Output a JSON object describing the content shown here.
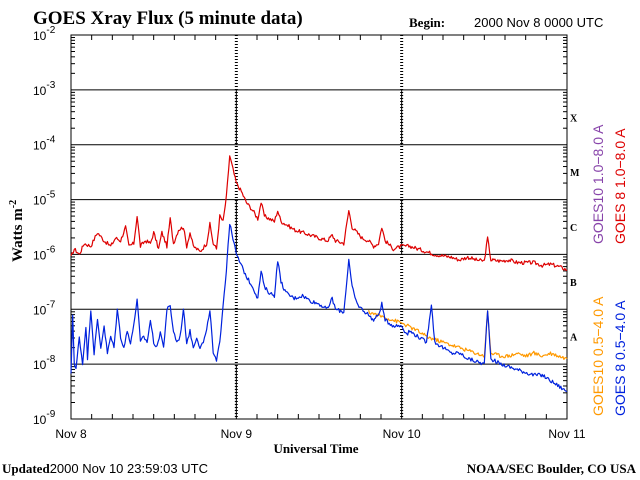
{
  "chart_data": {
    "type": "line",
    "title": "GOES Xray Flux (5 minute data)",
    "begin_label": "Begin:",
    "begin_value": "2000 Nov 8  0000 UTC",
    "ylabel": "Watts m",
    "ylabel_sup": "-2",
    "xlabel": "Universal Time",
    "yscale": "log",
    "ylim_exp": [
      -9,
      -2
    ],
    "y_ticks": [
      {
        "exp": -9,
        "base": "10",
        "sup": "-9"
      },
      {
        "exp": -8,
        "base": "10",
        "sup": "-8"
      },
      {
        "exp": -7,
        "base": "10",
        "sup": "-7"
      },
      {
        "exp": -6,
        "base": "10",
        "sup": "-6"
      },
      {
        "exp": -5,
        "base": "10",
        "sup": "-5"
      },
      {
        "exp": -4,
        "base": "10",
        "sup": "-4"
      },
      {
        "exp": -3,
        "base": "10",
        "sup": "-3"
      },
      {
        "exp": -2,
        "base": "10",
        "sup": "-2"
      }
    ],
    "xlim_days": [
      0,
      3
    ],
    "x_ticks": [
      {
        "day": 0,
        "label": "Nov 8"
      },
      {
        "day": 1,
        "label": "Nov 9"
      },
      {
        "day": 2,
        "label": "Nov 10"
      },
      {
        "day": 3,
        "label": "Nov 11"
      }
    ],
    "flare_classes": [
      {
        "label": "A",
        "exp": -8
      },
      {
        "label": "B",
        "exp": -7
      },
      {
        "label": "C",
        "exp": -6
      },
      {
        "label": "M",
        "exp": -5
      },
      {
        "label": "X",
        "exp": -4
      }
    ],
    "series": [
      {
        "name": "GOES 8 1.0-8.0 A",
        "legend": "GOES 8 1.0−8.0 A",
        "color": "#dd0000",
        "points": [
          [
            0,
            -6.05
          ],
          [
            0.02,
            -5.9
          ],
          [
            0.05,
            -6.0
          ],
          [
            0.08,
            -5.8
          ],
          [
            0.12,
            -5.85
          ],
          [
            0.16,
            -5.6
          ],
          [
            0.2,
            -5.75
          ],
          [
            0.24,
            -5.85
          ],
          [
            0.27,
            -5.7
          ],
          [
            0.3,
            -5.75
          ],
          [
            0.33,
            -5.5
          ],
          [
            0.35,
            -5.85
          ],
          [
            0.38,
            -5.8
          ],
          [
            0.4,
            -5.3
          ],
          [
            0.42,
            -5.85
          ],
          [
            0.45,
            -5.75
          ],
          [
            0.48,
            -5.8
          ],
          [
            0.5,
            -5.6
          ],
          [
            0.53,
            -5.9
          ],
          [
            0.55,
            -5.6
          ],
          [
            0.58,
            -5.85
          ],
          [
            0.6,
            -5.35
          ],
          [
            0.62,
            -5.8
          ],
          [
            0.65,
            -5.55
          ],
          [
            0.68,
            -5.5
          ],
          [
            0.7,
            -5.85
          ],
          [
            0.72,
            -5.6
          ],
          [
            0.74,
            -5.85
          ],
          [
            0.78,
            -5.95
          ],
          [
            0.82,
            -5.8
          ],
          [
            0.84,
            -5.45
          ],
          [
            0.86,
            -5.8
          ],
          [
            0.88,
            -5.9
          ],
          [
            0.9,
            -5.3
          ],
          [
            0.92,
            -5.4
          ],
          [
            0.94,
            -4.95
          ],
          [
            0.96,
            -4.2
          ],
          [
            0.98,
            -4.45
          ],
          [
            1.0,
            -4.7
          ],
          [
            1.03,
            -4.85
          ],
          [
            1.06,
            -5.05
          ],
          [
            1.1,
            -5.2
          ],
          [
            1.13,
            -5.35
          ],
          [
            1.15,
            -5.05
          ],
          [
            1.17,
            -5.3
          ],
          [
            1.2,
            -5.35
          ],
          [
            1.23,
            -5.4
          ],
          [
            1.25,
            -5.2
          ],
          [
            1.27,
            -5.4
          ],
          [
            1.3,
            -5.45
          ],
          [
            1.35,
            -5.55
          ],
          [
            1.4,
            -5.6
          ],
          [
            1.45,
            -5.65
          ],
          [
            1.5,
            -5.7
          ],
          [
            1.55,
            -5.75
          ],
          [
            1.58,
            -5.65
          ],
          [
            1.6,
            -5.75
          ],
          [
            1.65,
            -5.8
          ],
          [
            1.68,
            -5.2
          ],
          [
            1.7,
            -5.5
          ],
          [
            1.73,
            -5.6
          ],
          [
            1.76,
            -5.7
          ],
          [
            1.8,
            -5.75
          ],
          [
            1.83,
            -5.85
          ],
          [
            1.86,
            -5.8
          ],
          [
            1.88,
            -5.5
          ],
          [
            1.9,
            -5.75
          ],
          [
            1.95,
            -5.9
          ],
          [
            2.0,
            -5.85
          ],
          [
            2.05,
            -5.85
          ],
          [
            2.1,
            -5.9
          ],
          [
            2.15,
            -5.95
          ],
          [
            2.2,
            -6.0
          ],
          [
            2.3,
            -6.05
          ],
          [
            2.35,
            -6.1
          ],
          [
            2.4,
            -6.05
          ],
          [
            2.45,
            -6.1
          ],
          [
            2.5,
            -6.12
          ],
          [
            2.52,
            -5.7
          ],
          [
            2.54,
            -6.1
          ],
          [
            2.6,
            -6.12
          ],
          [
            2.65,
            -6.1
          ],
          [
            2.7,
            -6.15
          ],
          [
            2.75,
            -6.15
          ],
          [
            2.8,
            -6.15
          ],
          [
            2.85,
            -6.2
          ],
          [
            2.9,
            -6.18
          ],
          [
            2.95,
            -6.22
          ],
          [
            3.0,
            -6.28
          ]
        ]
      },
      {
        "name": "GOES 8 0.5-4.0 A",
        "legend": "GOES 8 0.5−4.0 A",
        "color": "#0022dd",
        "points": [
          [
            0,
            -8.2
          ],
          [
            0.01,
            -7.1
          ],
          [
            0.02,
            -8.0
          ],
          [
            0.03,
            -8.1
          ],
          [
            0.05,
            -7.5
          ],
          [
            0.07,
            -8.0
          ],
          [
            0.09,
            -7.3
          ],
          [
            0.1,
            -7.9
          ],
          [
            0.12,
            -7.0
          ],
          [
            0.14,
            -7.8
          ],
          [
            0.16,
            -7.2
          ],
          [
            0.18,
            -7.7
          ],
          [
            0.2,
            -7.3
          ],
          [
            0.22,
            -7.8
          ],
          [
            0.24,
            -7.5
          ],
          [
            0.26,
            -7.7
          ],
          [
            0.28,
            -7.0
          ],
          [
            0.3,
            -7.5
          ],
          [
            0.32,
            -7.7
          ],
          [
            0.34,
            -7.4
          ],
          [
            0.36,
            -7.6
          ],
          [
            0.38,
            -7.3
          ],
          [
            0.4,
            -6.8
          ],
          [
            0.42,
            -7.6
          ],
          [
            0.44,
            -7.5
          ],
          [
            0.46,
            -7.6
          ],
          [
            0.48,
            -7.2
          ],
          [
            0.5,
            -7.6
          ],
          [
            0.52,
            -7.7
          ],
          [
            0.54,
            -7.4
          ],
          [
            0.56,
            -7.7
          ],
          [
            0.58,
            -7.0
          ],
          [
            0.6,
            -6.95
          ],
          [
            0.62,
            -7.4
          ],
          [
            0.64,
            -7.6
          ],
          [
            0.66,
            -7.5
          ],
          [
            0.68,
            -7.0
          ],
          [
            0.7,
            -7.6
          ],
          [
            0.72,
            -7.4
          ],
          [
            0.74,
            -7.7
          ],
          [
            0.76,
            -7.5
          ],
          [
            0.78,
            -7.7
          ],
          [
            0.8,
            -7.6
          ],
          [
            0.82,
            -7.4
          ],
          [
            0.84,
            -7.0
          ],
          [
            0.86,
            -7.8
          ],
          [
            0.88,
            -7.95
          ],
          [
            0.9,
            -7.6
          ],
          [
            0.92,
            -6.9
          ],
          [
            0.94,
            -6.3
          ],
          [
            0.95,
            -5.8
          ],
          [
            0.96,
            -5.45
          ],
          [
            0.98,
            -5.7
          ],
          [
            1.0,
            -6.0
          ],
          [
            1.03,
            -6.2
          ],
          [
            1.06,
            -6.4
          ],
          [
            1.1,
            -6.6
          ],
          [
            1.13,
            -6.8
          ],
          [
            1.15,
            -6.3
          ],
          [
            1.17,
            -6.6
          ],
          [
            1.2,
            -6.7
          ],
          [
            1.23,
            -6.75
          ],
          [
            1.25,
            -6.1
          ],
          [
            1.27,
            -6.5
          ],
          [
            1.3,
            -6.7
          ],
          [
            1.35,
            -6.8
          ],
          [
            1.4,
            -6.75
          ],
          [
            1.45,
            -6.85
          ],
          [
            1.5,
            -6.9
          ],
          [
            1.55,
            -7.0
          ],
          [
            1.58,
            -6.8
          ],
          [
            1.6,
            -7.0
          ],
          [
            1.65,
            -7.05
          ],
          [
            1.68,
            -6.1
          ],
          [
            1.7,
            -6.6
          ],
          [
            1.73,
            -6.9
          ],
          [
            1.76,
            -7.0
          ],
          [
            1.8,
            -7.1
          ],
          [
            1.83,
            -7.2
          ],
          [
            1.86,
            -7.1
          ],
          [
            1.88,
            -6.9
          ],
          [
            1.9,
            -7.2
          ],
          [
            1.95,
            -7.3
          ],
          [
            2.0,
            -7.3
          ],
          [
            2.03,
            -7.45
          ],
          [
            2.05,
            -7.4
          ],
          [
            2.1,
            -7.5
          ],
          [
            2.15,
            -7.6
          ],
          [
            2.18,
            -6.9
          ],
          [
            2.2,
            -7.6
          ],
          [
            2.25,
            -7.7
          ],
          [
            2.3,
            -7.8
          ],
          [
            2.35,
            -7.8
          ],
          [
            2.4,
            -7.9
          ],
          [
            2.45,
            -7.95
          ],
          [
            2.5,
            -8.0
          ],
          [
            2.52,
            -7.0
          ],
          [
            2.54,
            -7.9
          ],
          [
            2.6,
            -8.0
          ],
          [
            2.65,
            -8.05
          ],
          [
            2.7,
            -8.1
          ],
          [
            2.75,
            -8.15
          ],
          [
            2.8,
            -8.2
          ],
          [
            2.85,
            -8.2
          ],
          [
            2.9,
            -8.3
          ],
          [
            2.95,
            -8.4
          ],
          [
            3.0,
            -8.5
          ]
        ]
      },
      {
        "name": "GOES10 1.0-8.0 A",
        "legend": "GOES10 1.0−8.0 A",
        "color": "#8844aa",
        "points": []
      },
      {
        "name": "GOES10 0.5-4.0 A",
        "legend": "GOES10 0.5−4.0 A",
        "color": "#ff9900",
        "points": [
          [
            1.8,
            -7.05
          ],
          [
            1.9,
            -7.15
          ],
          [
            2.0,
            -7.25
          ],
          [
            2.1,
            -7.4
          ],
          [
            2.15,
            -7.5
          ],
          [
            2.2,
            -7.55
          ],
          [
            2.25,
            -7.6
          ],
          [
            2.3,
            -7.65
          ],
          [
            2.35,
            -7.7
          ],
          [
            2.4,
            -7.75
          ],
          [
            2.45,
            -7.8
          ],
          [
            2.5,
            -7.85
          ],
          [
            2.52,
            -7.05
          ],
          [
            2.54,
            -7.8
          ],
          [
            2.6,
            -7.85
          ],
          [
            2.65,
            -7.85
          ],
          [
            2.7,
            -7.8
          ],
          [
            2.75,
            -7.85
          ],
          [
            2.8,
            -7.8
          ],
          [
            2.85,
            -7.85
          ],
          [
            2.9,
            -7.8
          ],
          [
            2.95,
            -7.85
          ],
          [
            3.0,
            -7.9
          ]
        ]
      }
    ]
  },
  "footer": {
    "updated_label": "Updated",
    "updated_value": "2000 Nov 10 23:59:03 UTC",
    "credit": "NOAA/SEC Boulder, CO USA"
  }
}
